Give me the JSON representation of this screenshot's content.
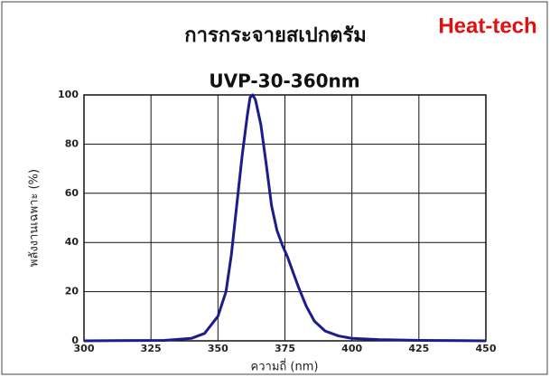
{
  "chart_data": {
    "type": "line",
    "title": "การกระจายสเปกตรัม",
    "brand": "Heat-tech",
    "subtitle": "UVP-30-360nm",
    "x_label": "ความถี่ (nm)",
    "y_label": "พลังงานเฉพาะ (%)",
    "x": [
      300,
      330,
      340,
      345,
      350,
      353,
      355,
      357,
      359,
      361,
      362,
      363,
      364,
      366,
      368,
      370,
      372,
      374,
      376,
      378,
      380,
      383,
      386,
      390,
      395,
      400,
      410,
      425,
      450
    ],
    "series": [
      {
        "name": "UVP-30-360nm",
        "color": "#1c1c8c",
        "values": [
          0,
          0.2,
          1,
          3,
          10,
          20,
          35,
          55,
          75,
          92,
          99,
          100,
          98,
          88,
          72,
          55,
          45,
          39,
          34,
          28,
          22,
          14,
          8,
          4,
          2,
          1,
          0.5,
          0.2,
          0
        ]
      }
    ],
    "xlim": [
      300,
      450
    ],
    "xticks": [
      300,
      325,
      350,
      375,
      400,
      425,
      450
    ],
    "ylim": [
      0,
      100
    ],
    "yticks": [
      0,
      20,
      40,
      60,
      80,
      100
    ],
    "grid": true
  }
}
